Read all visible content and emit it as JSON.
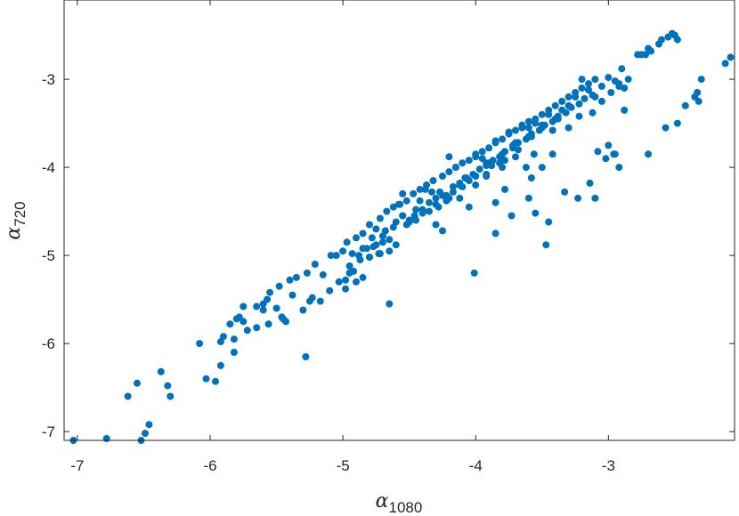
{
  "chart_data": {
    "type": "scatter",
    "xlabel": {
      "symbol": "α",
      "subscript": "1080"
    },
    "ylabel": {
      "symbol": "α",
      "subscript": "720"
    },
    "xlim": [
      -7.1,
      -2.05
    ],
    "ylim": [
      -7.1,
      -2.1
    ],
    "xticks": [
      -7,
      -6,
      -5,
      -4,
      -3
    ],
    "yticks": [
      -7,
      -6,
      -5,
      -4,
      -3
    ],
    "xtick_labels": [
      "-7",
      "-6",
      "-5",
      "-4",
      "-3"
    ],
    "ytick_labels": [
      "-7",
      "-6",
      "-5",
      "-4",
      "-3"
    ],
    "grid": false,
    "marker_color": "#0072BD",
    "series": [
      {
        "x": [
          -7.03,
          -6.78,
          -6.52,
          -6.49,
          -6.46,
          -6.62,
          -6.55,
          -6.37,
          -6.32,
          -6.3,
          -6.08,
          -6.03,
          -5.96,
          -5.92,
          -5.92,
          -5.9,
          -5.85,
          -5.82,
          -5.82,
          -5.8,
          -5.78,
          -5.75,
          -5.72,
          -5.65,
          -5.65,
          -5.6,
          -5.57,
          -5.56,
          -5.55,
          -5.5,
          -5.48,
          -5.46,
          -5.43,
          -5.4,
          -5.38,
          -5.35,
          -5.27,
          -5.23,
          -5.21,
          -5.17,
          -5.15,
          -5.09,
          -5.03,
          -5.0,
          -4.97,
          -4.95,
          -4.93,
          -4.9,
          -4.88,
          -4.85,
          -4.82,
          -4.8,
          -4.77,
          -4.75,
          -4.72,
          -4.7,
          -4.67,
          -4.65,
          -4.62,
          -4.6,
          -4.57,
          -4.55,
          -4.52,
          -4.5,
          -4.47,
          -4.45,
          -4.42,
          -4.4,
          -4.37,
          -4.35,
          -4.32,
          -4.3,
          -4.27,
          -4.25,
          -4.22,
          -4.2,
          -4.17,
          -4.15,
          -4.12,
          -4.1,
          -4.07,
          -4.05,
          -4.02,
          -4.0,
          -3.97,
          -3.95,
          -3.92,
          -3.9,
          -3.87,
          -3.85,
          -3.82,
          -3.8,
          -3.78,
          -3.75,
          -3.72,
          -3.7,
          -3.68,
          -3.65,
          -3.62,
          -3.6,
          -3.58,
          -3.55,
          -3.52,
          -3.5,
          -3.48,
          -3.45,
          -3.42,
          -3.4,
          -3.38,
          -3.35,
          -3.32,
          -3.3,
          -3.28,
          -3.25,
          -3.22,
          -3.2,
          -3.18,
          -3.15,
          -3.12,
          -3.1,
          -3.05,
          -3.0,
          -2.95,
          -2.92,
          -2.9,
          -2.88,
          -2.85,
          -2.72,
          -2.68,
          -2.62,
          -2.6,
          -2.55,
          -2.52,
          -2.5,
          -2.48,
          -4.95,
          -4.98,
          -4.9,
          -4.87,
          -4.85,
          -4.8,
          -4.75,
          -4.72,
          -4.7,
          -4.68,
          -4.65,
          -4.62,
          -4.58,
          -4.55,
          -4.5,
          -4.46,
          -4.42,
          -4.38,
          -4.33,
          -4.28,
          -4.25,
          -4.2,
          -4.15,
          -4.1,
          -4.05,
          -4.0,
          -3.95,
          -3.9,
          -3.85,
          -3.8,
          -3.75,
          -3.7,
          -3.65,
          -3.6,
          -3.55,
          -3.5,
          -3.45,
          -3.4,
          -3.35,
          -3.3,
          -3.25,
          -3.2,
          -3.15,
          -3.1,
          -5.75,
          -5.6,
          -5.45,
          -5.3,
          -5.25,
          -5.1,
          -5.05,
          -4.98,
          -4.92,
          -4.85,
          -4.8,
          -4.78,
          -4.73,
          -4.68,
          -4.6,
          -4.52,
          -4.45,
          -4.4,
          -4.35,
          -4.3,
          -4.22,
          -4.17,
          -4.12,
          -4.08,
          -4.0,
          -3.92,
          -3.88,
          -3.82,
          -3.78,
          -3.72,
          -3.6,
          -3.58,
          -3.5,
          -3.42,
          -3.38,
          -3.3,
          -3.22,
          -3.12,
          -3.05,
          -2.98,
          -2.92,
          -3.85,
          -3.73,
          -3.6,
          -3.5,
          -3.47,
          -3.33,
          -3.23,
          -3.14,
          -3.1,
          -3.0,
          -2.96,
          -2.92,
          -2.88,
          -2.7,
          -2.57,
          -2.48,
          -2.42,
          -2.35,
          -2.33,
          -2.3,
          -4.2,
          -4.0,
          -3.85,
          -3.78,
          -3.58,
          -3.55,
          -3.45,
          -3.92,
          -4.01,
          -4.65,
          -4.55,
          -5.28,
          -2.12,
          -2.08,
          -2.7,
          -2.75,
          -2.78,
          -4.3,
          -4.25,
          -4.12,
          -4.05,
          -3.8,
          -3.88,
          -3.7,
          -3.92,
          -3.68,
          -3.62,
          -3.56,
          -2.32,
          -3.42,
          -3.08,
          -3.02,
          -2.95
        ],
        "y": [
          -7.1,
          -7.08,
          -7.1,
          -7.02,
          -6.92,
          -6.6,
          -6.45,
          -6.32,
          -6.48,
          -6.6,
          -6.0,
          -6.4,
          -6.43,
          -6.25,
          -5.98,
          -5.92,
          -5.78,
          -5.95,
          -6.1,
          -5.72,
          -5.7,
          -5.75,
          -5.85,
          -5.58,
          -5.82,
          -5.62,
          -5.5,
          -5.78,
          -5.42,
          -5.6,
          -5.35,
          -5.7,
          -5.75,
          -5.28,
          -5.45,
          -5.25,
          -5.2,
          -5.48,
          -5.1,
          -5.52,
          -5.22,
          -5.0,
          -5.3,
          -4.95,
          -4.85,
          -5.12,
          -4.98,
          -4.8,
          -5.0,
          -4.75,
          -4.92,
          -4.65,
          -4.9,
          -4.7,
          -4.58,
          -4.78,
          -4.5,
          -4.82,
          -4.45,
          -4.62,
          -4.42,
          -4.55,
          -4.38,
          -4.6,
          -4.3,
          -4.48,
          -4.25,
          -4.52,
          -4.2,
          -4.4,
          -4.15,
          -4.35,
          -4.28,
          -4.1,
          -4.32,
          -4.05,
          -4.22,
          -4.0,
          -4.18,
          -3.95,
          -4.12,
          -3.92,
          -4.08,
          -3.88,
          -4.02,
          -3.82,
          -3.98,
          -3.78,
          -3.92,
          -3.72,
          -3.88,
          -3.68,
          -3.82,
          -3.62,
          -3.78,
          -3.58,
          -3.72,
          -3.52,
          -3.68,
          -3.48,
          -3.62,
          -3.45,
          -3.58,
          -3.4,
          -3.52,
          -3.35,
          -3.48,
          -3.3,
          -3.42,
          -3.25,
          -3.38,
          -3.2,
          -3.32,
          -3.15,
          -3.28,
          -3.1,
          -3.22,
          -3.05,
          -3.18,
          -3.0,
          -3.08,
          -2.98,
          -3.02,
          -3.05,
          -2.88,
          -3.1,
          -3.0,
          -2.72,
          -2.68,
          -2.6,
          -2.55,
          -2.52,
          -2.48,
          -2.5,
          -2.55,
          -5.2,
          -5.38,
          -5.3,
          -5.05,
          -4.92,
          -5.02,
          -4.88,
          -4.98,
          -4.85,
          -4.72,
          -4.95,
          -4.68,
          -4.42,
          -4.3,
          -4.62,
          -4.55,
          -4.38,
          -4.25,
          -4.28,
          -4.45,
          -4.32,
          -4.35,
          -4.0,
          -4.22,
          -4.15,
          -3.85,
          -3.9,
          -3.95,
          -3.7,
          -3.85,
          -3.6,
          -3.72,
          -3.55,
          -3.65,
          -3.5,
          -3.55,
          -3.4,
          -3.45,
          -3.35,
          -3.3,
          -3.2,
          -3.0,
          -3.12,
          -3.2,
          -5.58,
          -5.55,
          -5.72,
          -5.62,
          -5.52,
          -5.4,
          -5.0,
          -5.28,
          -5.18,
          -5.25,
          -5.02,
          -4.8,
          -4.98,
          -4.72,
          -4.88,
          -4.65,
          -4.6,
          -4.48,
          -4.5,
          -4.42,
          -4.38,
          -4.28,
          -4.2,
          -4.12,
          -4.1,
          -4.08,
          -3.98,
          -3.95,
          -3.92,
          -3.75,
          -3.55,
          -3.65,
          -3.52,
          -3.58,
          -3.45,
          -3.55,
          -3.42,
          -3.38,
          -3.25,
          -3.15,
          -3.08,
          -4.4,
          -4.55,
          -4.35,
          -4.0,
          -4.88,
          -4.28,
          -4.35,
          -4.18,
          -4.35,
          -3.75,
          -3.85,
          -4.0,
          -3.35,
          -3.85,
          -3.55,
          -3.5,
          -3.3,
          -3.2,
          -3.15,
          -3.0,
          -3.88,
          -4.2,
          -4.75,
          -4.25,
          -4.12,
          -4.52,
          -4.62,
          -4.1,
          -5.2,
          -5.55,
          -4.55,
          -6.15,
          -2.82,
          -2.75,
          -2.65,
          -2.72,
          -2.72,
          -4.65,
          -4.72,
          -4.35,
          -4.45,
          -4.0,
          -3.98,
          -3.88,
          -3.95,
          -3.8,
          -4.0,
          -3.85,
          -3.25,
          -3.85,
          -3.82,
          -3.9,
          -3.85
        ]
      }
    ]
  }
}
